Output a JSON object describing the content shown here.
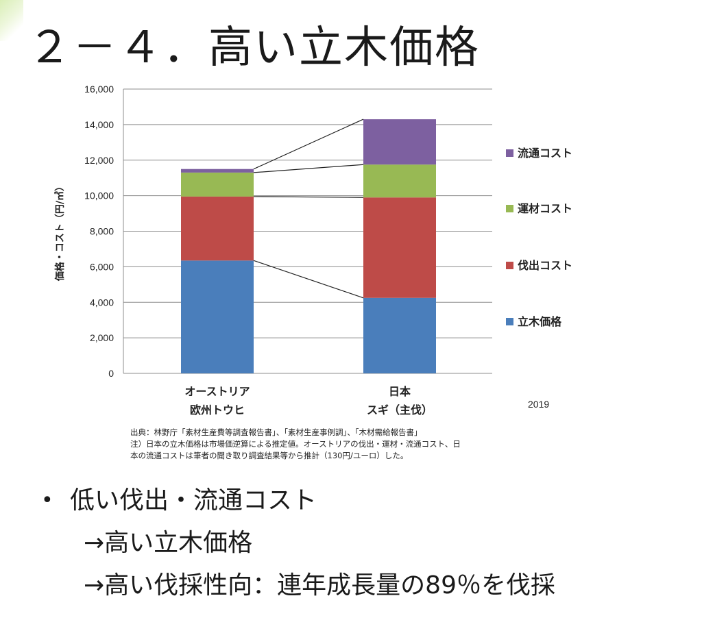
{
  "slide": {
    "title": "２－４．高い立木価格"
  },
  "chart_data": {
    "type": "bar",
    "stacked": true,
    "categories": [
      [
        "オーストリア",
        "欧州トウヒ"
      ],
      [
        "日本",
        "スギ（主伐）"
      ]
    ],
    "series": [
      {
        "name": "立木価格",
        "color": "#4a7ebb",
        "values": [
          6350,
          4250
        ]
      },
      {
        "name": "伐出コスト",
        "color": "#be4b48",
        "values": [
          3600,
          5650
        ]
      },
      {
        "name": "運材コスト",
        "color": "#98b954",
        "values": [
          1350,
          1850
        ]
      },
      {
        "name": "流通コスト",
        "color": "#7d60a0",
        "values": [
          200,
          2550
        ]
      }
    ],
    "legend_order": [
      "流通コスト",
      "運材コスト",
      "伐出コスト",
      "立木価格"
    ],
    "ylabel": "価格・コスト（円/㎥）",
    "ylim": [
      0,
      16000
    ],
    "yticks": [
      0,
      2000,
      4000,
      6000,
      8000,
      10000,
      12000,
      14000,
      16000
    ],
    "ytick_labels": [
      "0",
      "2,000",
      "4,000",
      "6,000",
      "8,000",
      "10,000",
      "12,000",
      "14,000",
      "16,000"
    ],
    "grid": true,
    "legend_position": "right",
    "annotation": "2019",
    "connector_lines": true
  },
  "source_note": [
    "出典：林野庁「素材生産費等調査報告書」、「素材生産事例調」、「木材需給報告書」",
    "注）日本の立木価格は市場価逆算による推定値。オーストリアの伐出・運材・流通コスト、日",
    "本の流通コストは筆者の聞き取り調査結果等から推計（130円/ユーロ）した。"
  ],
  "bullets": {
    "main": "低い伐出・流通コスト",
    "bullet_symbol": "•",
    "sub": [
      "→高い立木価格",
      "→高い伐採性向：連年成長量の89％を伐採"
    ]
  }
}
